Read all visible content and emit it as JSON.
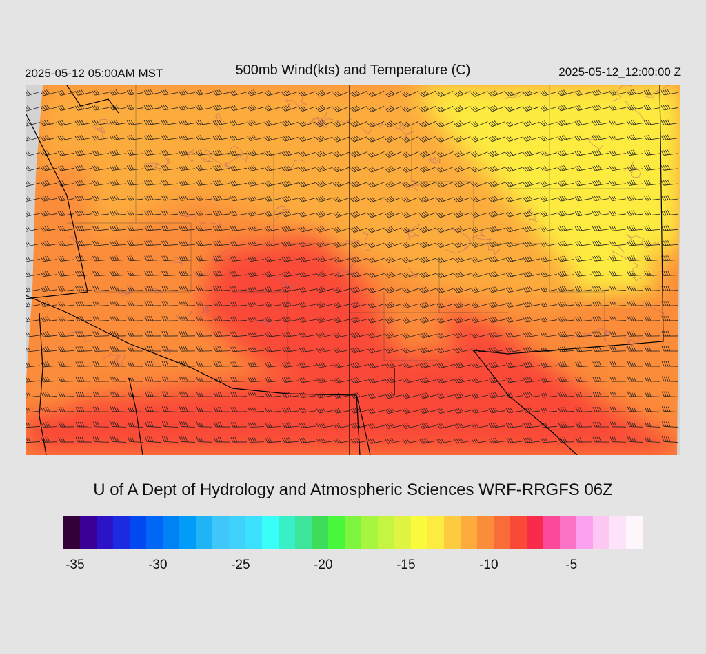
{
  "header": {
    "valid_local": "2025-05-12 05:00AM MST",
    "title": "500mb Wind(kts) and Temperature (C)",
    "valid_utc": "2025-05-12_12:00:00 Z"
  },
  "credit": "U of A Dept of Hydrology and Atmospheric Sciences WRF-RRGFS 06Z",
  "colors": {
    "page_background": "#e4e4e4",
    "out_of_domain": "#d3d3d3",
    "state_boundaries": "#000000",
    "wind_barbs": "#222222",
    "terrain_contours": "#b0607a"
  },
  "colorbar": {
    "swatches": [
      "#33003a",
      "#3a0096",
      "#2c13c7",
      "#1b2bdf",
      "#0049f2",
      "#0066f5",
      "#0082f7",
      "#009cf7",
      "#20b4f7",
      "#3fc6fa",
      "#3ed2fd",
      "#3de1ff",
      "#3afff8",
      "#37f0c8",
      "#3de59c",
      "#3ddd5a",
      "#48f83c",
      "#7df43d",
      "#a6f53e",
      "#c5f540",
      "#e0f543",
      "#fbfb3e",
      "#fdeb40",
      "#fccb3f",
      "#fcab3c",
      "#fb8c3a",
      "#fa6c37",
      "#fa4a37",
      "#f82b4d",
      "#fc4a9a",
      "#fc73c5",
      "#fca0f0",
      "#fcc7f0",
      "#fce3fa",
      "#fff6fc"
    ],
    "tick_labels": [
      {
        "text": "-35",
        "index": 0.7
      },
      {
        "text": "-30",
        "index": 5.7
      },
      {
        "text": "-25",
        "index": 10.7
      },
      {
        "text": "-20",
        "index": 15.7
      },
      {
        "text": "-15",
        "index": 20.7
      },
      {
        "text": "-10",
        "index": 25.7
      },
      {
        "text": "-5",
        "index": 30.7
      }
    ]
  },
  "map": {
    "field": "500mb temperature (C)",
    "temperature_range_shown": [
      -16,
      -9
    ],
    "region_colors": {
      "coldest_yellow": "#fdeb40",
      "mid_orange": "#fcab3c",
      "warm_orange": "#fb8c3a",
      "warmest_red": "#fa4a37"
    },
    "barb_style": "westerly flow, 20-40 kt barbs"
  }
}
